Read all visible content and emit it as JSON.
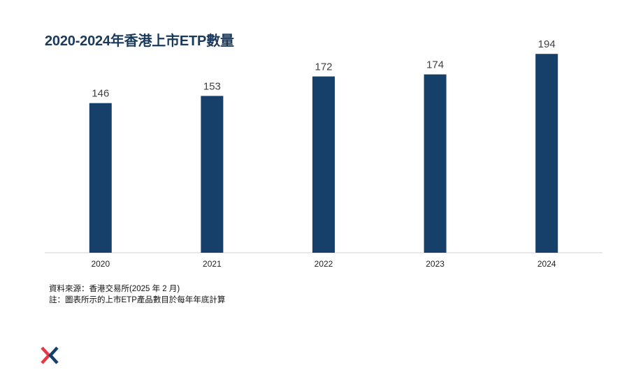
{
  "chart_data": {
    "type": "bar",
    "title": "2020-2024年香港上市ETP數量",
    "categories": [
      "2020",
      "2021",
      "2022",
      "2023",
      "2024"
    ],
    "values": [
      146,
      153,
      172,
      174,
      194
    ],
    "xlabel": "",
    "ylabel": "",
    "ylim": [
      0,
      200
    ],
    "grid": false,
    "bar_color": "#16406a"
  },
  "footnotes": {
    "source": "資料來源：香港交易所(2025 年 2 月)",
    "note": "註：圖表所示的上市ETP產品數目於每年年底計算"
  },
  "logo": {
    "icon": "hkex-logo-icon",
    "colors": [
      "#e63946",
      "#16406a"
    ]
  }
}
